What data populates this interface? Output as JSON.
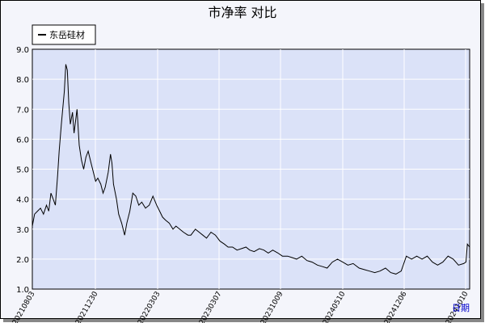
{
  "chart_data": {
    "type": "line",
    "title": "市净率  对比",
    "xlabel": "日期",
    "ylabel": "",
    "ylim": [
      1.0,
      9.0
    ],
    "yticks": [
      1.0,
      2.0,
      3.0,
      4.0,
      5.0,
      6.0,
      7.0,
      8.0,
      9.0
    ],
    "ytick_labels": [
      "1.0",
      "2.0",
      "3.0",
      "4.0",
      "5.0",
      "6.0",
      "7.0",
      "8.0",
      "9.0"
    ],
    "xlim": [
      "2021-08-03",
      "2024-10-21"
    ],
    "xticks": [
      "2021-08-03",
      "2021-11-30",
      "2022-03-03",
      "2023-03-07",
      "2023-10-09",
      "2024-05-10",
      "2024-12-06",
      "2024-10-10"
    ],
    "xtick_labels": [
      "20210803",
      "20211230",
      "20220303",
      "20230307",
      "20231009",
      "20240510",
      "20241206",
      "20241010"
    ],
    "grid": true,
    "legend_position": "top-left",
    "series": [
      {
        "name": "东岳硅材",
        "color": "#000000",
        "x": [
          "2021-08-03",
          "2021-08-09",
          "2021-08-17",
          "2021-08-25",
          "2021-09-02",
          "2021-09-10",
          "2021-09-16",
          "2021-09-22",
          "2021-09-28",
          "2021-10-04",
          "2021-10-10",
          "2021-10-14",
          "2021-10-20",
          "2021-10-28",
          "2021-11-01",
          "2021-11-05",
          "2021-11-09",
          "2021-11-13",
          "2021-11-19",
          "2021-11-23",
          "2021-12-01",
          "2021-12-07",
          "2021-12-13",
          "2021-12-19",
          "2021-12-25",
          "2021-12-31",
          "2022-01-08",
          "2022-01-14",
          "2022-01-20",
          "2022-01-26",
          "2022-02-03",
          "2022-02-09",
          "2022-02-15",
          "2022-02-23",
          "2022-03-01",
          "2022-03-05",
          "2022-03-09",
          "2022-03-17",
          "2022-03-23",
          "2022-03-31",
          "2022-04-08",
          "2022-04-14",
          "2022-04-22",
          "2022-04-30",
          "2022-05-08",
          "2022-05-16",
          "2022-05-24",
          "2022-06-03",
          "2022-06-13",
          "2022-06-23",
          "2022-07-03",
          "2022-07-11",
          "2022-07-19",
          "2022-07-27",
          "2022-08-06",
          "2022-08-16",
          "2022-08-24",
          "2022-09-03",
          "2022-09-13",
          "2022-09-25",
          "2022-10-03",
          "2022-10-15",
          "2022-10-25",
          "2022-11-04",
          "2022-11-14",
          "2022-11-26",
          "2022-12-08",
          "2022-12-20",
          "2023-01-01",
          "2023-01-11",
          "2023-01-23",
          "2023-02-04",
          "2023-02-16",
          "2023-02-28",
          "2023-03-10",
          "2023-03-22",
          "2023-04-05",
          "2023-04-17",
          "2023-04-29",
          "2023-05-11",
          "2023-05-25",
          "2023-06-06",
          "2023-06-20",
          "2023-07-02",
          "2023-07-14",
          "2023-07-28",
          "2023-08-11",
          "2023-08-25",
          "2023-09-08",
          "2023-09-22",
          "2023-10-04",
          "2023-10-18",
          "2023-11-01",
          "2023-11-15",
          "2023-11-29",
          "2023-12-13",
          "2023-12-29",
          "2024-01-12",
          "2024-01-26",
          "2024-02-09",
          "2024-02-23",
          "2024-03-09",
          "2024-03-23",
          "2024-04-06",
          "2024-04-20",
          "2024-05-04",
          "2024-05-18",
          "2024-06-01",
          "2024-06-15",
          "2024-06-29",
          "2024-07-13",
          "2024-07-27",
          "2024-08-10",
          "2024-08-24",
          "2024-09-07",
          "2024-09-21",
          "2024-10-05",
          "2024-10-11",
          "2024-10-15",
          "2024-10-21"
        ],
        "values": [
          3.1,
          3.5,
          3.6,
          3.7,
          3.5,
          3.8,
          3.6,
          4.2,
          4.0,
          3.8,
          4.8,
          5.6,
          6.5,
          7.6,
          8.5,
          8.3,
          7.2,
          6.5,
          6.9,
          6.2,
          7.0,
          5.8,
          5.3,
          5.0,
          5.4,
          5.6,
          5.2,
          4.9,
          4.6,
          4.7,
          4.5,
          4.2,
          4.4,
          4.9,
          5.5,
          5.2,
          4.5,
          4.0,
          3.5,
          3.2,
          2.8,
          3.2,
          3.6,
          4.2,
          4.1,
          3.8,
          3.9,
          3.7,
          3.8,
          4.1,
          3.8,
          3.6,
          3.4,
          3.3,
          3.2,
          3.0,
          3.1,
          3.0,
          2.9,
          2.8,
          2.8,
          3.0,
          2.9,
          2.8,
          2.7,
          2.9,
          2.8,
          2.6,
          2.5,
          2.4,
          2.4,
          2.3,
          2.35,
          2.4,
          2.3,
          2.25,
          2.35,
          2.3,
          2.2,
          2.3,
          2.2,
          2.1,
          2.1,
          2.05,
          2.0,
          2.1,
          1.95,
          1.9,
          1.8,
          1.75,
          1.7,
          1.9,
          2.0,
          1.9,
          1.8,
          1.85,
          1.7,
          1.65,
          1.6,
          1.55,
          1.6,
          1.7,
          1.55,
          1.5,
          1.6,
          2.1,
          2.0,
          2.1,
          2.0,
          2.1,
          1.9,
          1.8,
          1.9,
          2.1,
          2.0,
          1.8,
          1.85,
          1.9,
          2.5,
          2.4
        ]
      }
    ]
  },
  "legend": {
    "entries": [
      "东岳硅材"
    ]
  },
  "colors": {
    "plot_bg": "#dbe2f8",
    "frame_bg": "#f4f5fb",
    "grid": "#ffffff",
    "line": "#000000",
    "axis_name": "#0000cc"
  }
}
